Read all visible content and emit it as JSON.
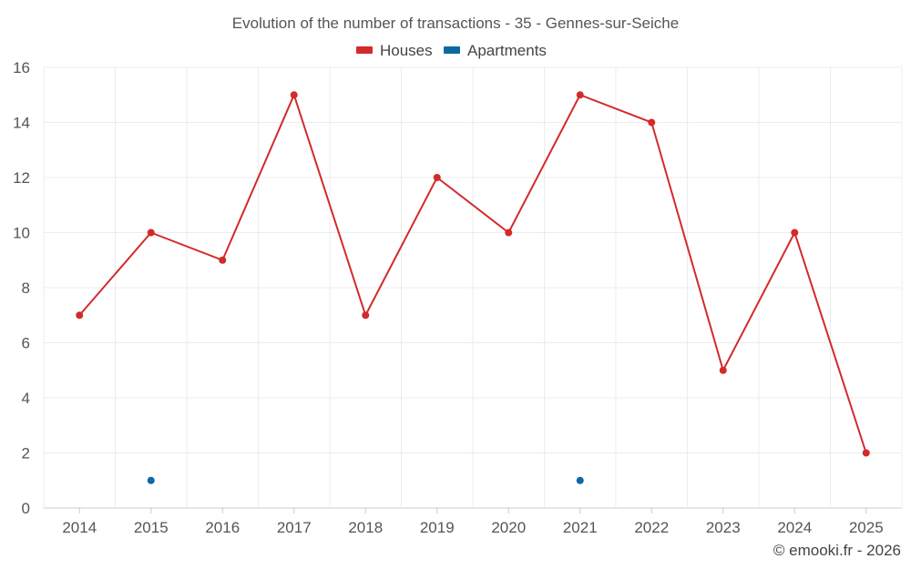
{
  "chart_data": {
    "type": "line",
    "title": "Evolution of the number of transactions - 35 - Gennes-sur-Seiche",
    "categories": [
      "2014",
      "2015",
      "2016",
      "2017",
      "2018",
      "2019",
      "2020",
      "2021",
      "2022",
      "2023",
      "2024",
      "2025"
    ],
    "series": [
      {
        "name": "Houses",
        "color": "#d32a2a",
        "values": [
          7,
          10,
          9,
          15,
          7,
          12,
          10,
          15,
          14,
          5,
          10,
          2
        ]
      },
      {
        "name": "Apartments",
        "color": "#0a6aa1",
        "values": [
          null,
          1,
          null,
          null,
          null,
          null,
          null,
          1,
          null,
          null,
          null,
          null
        ]
      }
    ],
    "yticks": [
      0,
      2,
      4,
      6,
      8,
      10,
      12,
      14,
      16
    ],
    "ylim": [
      0,
      16
    ],
    "legend": "top-center",
    "grid": true
  },
  "credit": "© emooki.fr - 2026"
}
